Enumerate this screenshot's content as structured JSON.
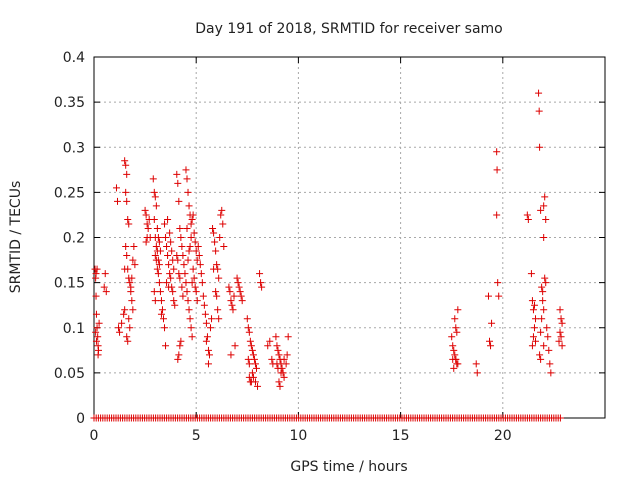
{
  "chart_data": {
    "type": "scatter",
    "title": "Day 191 of 2018, SRMTID for receiver samo",
    "xlabel": "GPS time / hours",
    "ylabel": "SRMTID / TECUs",
    "xlim": [
      0,
      25
    ],
    "ylim": [
      0,
      0.4
    ],
    "x_ticks": [
      0,
      5,
      10,
      15,
      20
    ],
    "y_ticks": [
      0,
      0.05,
      0.1,
      0.15,
      0.2,
      0.25,
      0.3,
      0.35,
      0.4
    ],
    "x_tick_labels": [
      "0",
      "5",
      "10",
      "15",
      "20"
    ],
    "y_tick_labels": [
      "0",
      "0.05",
      "0.1",
      "0.15",
      "0.2",
      "0.25",
      "0.3",
      "0.35",
      "0.4"
    ],
    "grid": true,
    "marker": "+",
    "colors": {
      "series": "#dd0000",
      "grid": "#a8a8a8",
      "axes": "#000000"
    },
    "series": [
      {
        "name": "SRMTID",
        "points": [
          [
            0.05,
            0.165
          ],
          [
            0.08,
            0.155
          ],
          [
            0.1,
            0.135
          ],
          [
            0.12,
            0.115
          ],
          [
            0.15,
            0.1
          ],
          [
            0.18,
            0.09
          ],
          [
            0.2,
            0.08
          ],
          [
            0.22,
            0.075
          ],
          [
            0.25,
            0.105
          ],
          [
            0.1,
            0.16
          ],
          [
            0.15,
            0.165
          ],
          [
            0.2,
            0.07
          ],
          [
            0.08,
            0.095
          ],
          [
            0.12,
            0.085
          ],
          [
            0.5,
            0.145
          ],
          [
            0.55,
            0.16
          ],
          [
            0.6,
            0.14
          ],
          [
            1.1,
            0.255
          ],
          [
            1.15,
            0.24
          ],
          [
            1.2,
            0.1
          ],
          [
            1.25,
            0.095
          ],
          [
            1.35,
            0.105
          ],
          [
            1.5,
            0.285
          ],
          [
            1.55,
            0.28
          ],
          [
            1.6,
            0.27
          ],
          [
            1.55,
            0.25
          ],
          [
            1.6,
            0.24
          ],
          [
            1.65,
            0.22
          ],
          [
            1.7,
            0.215
          ],
          [
            1.55,
            0.19
          ],
          [
            1.6,
            0.18
          ],
          [
            1.65,
            0.165
          ],
          [
            1.7,
            0.155
          ],
          [
            1.75,
            0.15
          ],
          [
            1.8,
            0.14
          ],
          [
            1.85,
            0.13
          ],
          [
            1.9,
            0.12
          ],
          [
            1.7,
            0.11
          ],
          [
            1.75,
            0.1
          ],
          [
            1.6,
            0.09
          ],
          [
            1.8,
            0.145
          ],
          [
            1.85,
            0.155
          ],
          [
            1.9,
            0.175
          ],
          [
            1.95,
            0.19
          ],
          [
            2.0,
            0.17
          ],
          [
            1.5,
            0.165
          ],
          [
            1.5,
            0.12
          ],
          [
            1.45,
            0.115
          ],
          [
            1.65,
            0.085
          ],
          [
            2.5,
            0.23
          ],
          [
            2.55,
            0.225
          ],
          [
            2.6,
            0.215
          ],
          [
            2.65,
            0.21
          ],
          [
            2.7,
            0.22
          ],
          [
            2.75,
            0.2
          ],
          [
            2.6,
            0.2
          ],
          [
            2.55,
            0.195
          ],
          [
            2.9,
            0.265
          ],
          [
            2.95,
            0.25
          ],
          [
            3.0,
            0.245
          ],
          [
            3.05,
            0.235
          ],
          [
            2.95,
            0.22
          ],
          [
            3.0,
            0.2
          ],
          [
            3.05,
            0.19
          ],
          [
            3.1,
            0.185
          ],
          [
            3.15,
            0.175
          ],
          [
            3.2,
            0.17
          ],
          [
            3.1,
            0.165
          ],
          [
            3.15,
            0.16
          ],
          [
            3.2,
            0.15
          ],
          [
            3.25,
            0.14
          ],
          [
            3.3,
            0.13
          ],
          [
            3.35,
            0.12
          ],
          [
            3.4,
            0.11
          ],
          [
            3.45,
            0.1
          ],
          [
            3.3,
            0.115
          ],
          [
            3.0,
            0.18
          ],
          [
            3.05,
            0.175
          ],
          [
            3.1,
            0.21
          ],
          [
            3.15,
            0.2
          ],
          [
            3.2,
            0.195
          ],
          [
            3.25,
            0.185
          ],
          [
            2.95,
            0.14
          ],
          [
            3.0,
            0.13
          ],
          [
            3.45,
            0.215
          ],
          [
            3.5,
            0.2
          ],
          [
            3.55,
            0.19
          ],
          [
            3.6,
            0.18
          ],
          [
            3.65,
            0.17
          ],
          [
            3.7,
            0.16
          ],
          [
            3.75,
            0.155
          ],
          [
            3.8,
            0.145
          ],
          [
            3.85,
            0.14
          ],
          [
            3.9,
            0.13
          ],
          [
            3.95,
            0.125
          ],
          [
            3.5,
            0.08
          ],
          [
            3.6,
            0.22
          ],
          [
            3.7,
            0.205
          ],
          [
            3.75,
            0.195
          ],
          [
            3.8,
            0.185
          ],
          [
            3.85,
            0.175
          ],
          [
            3.9,
            0.165
          ],
          [
            3.55,
            0.15
          ],
          [
            3.65,
            0.145
          ],
          [
            4.05,
            0.27
          ],
          [
            4.1,
            0.26
          ],
          [
            4.15,
            0.24
          ],
          [
            4.2,
            0.21
          ],
          [
            4.25,
            0.2
          ],
          [
            4.3,
            0.19
          ],
          [
            4.35,
            0.18
          ],
          [
            4.4,
            0.17
          ],
          [
            4.45,
            0.16
          ],
          [
            4.5,
            0.15
          ],
          [
            4.55,
            0.14
          ],
          [
            4.6,
            0.13
          ],
          [
            4.65,
            0.12
          ],
          [
            4.7,
            0.11
          ],
          [
            4.75,
            0.1
          ],
          [
            4.8,
            0.09
          ],
          [
            4.1,
            0.065
          ],
          [
            4.15,
            0.07
          ],
          [
            4.2,
            0.08
          ],
          [
            4.25,
            0.085
          ],
          [
            4.05,
            0.18
          ],
          [
            4.1,
            0.175
          ],
          [
            4.15,
            0.16
          ],
          [
            4.2,
            0.155
          ],
          [
            4.3,
            0.145
          ],
          [
            4.35,
            0.135
          ],
          [
            4.5,
            0.275
          ],
          [
            4.55,
            0.265
          ],
          [
            4.6,
            0.25
          ],
          [
            4.65,
            0.235
          ],
          [
            4.7,
            0.225
          ],
          [
            4.75,
            0.215
          ],
          [
            4.8,
            0.22
          ],
          [
            4.85,
            0.225
          ],
          [
            4.9,
            0.205
          ],
          [
            4.95,
            0.195
          ],
          [
            5.0,
            0.185
          ],
          [
            5.05,
            0.175
          ],
          [
            4.85,
            0.165
          ],
          [
            4.9,
            0.155
          ],
          [
            4.95,
            0.145
          ],
          [
            5.0,
            0.14
          ],
          [
            5.05,
            0.13
          ],
          [
            4.6,
            0.175
          ],
          [
            4.65,
            0.185
          ],
          [
            4.7,
            0.19
          ],
          [
            4.75,
            0.2
          ],
          [
            4.8,
            0.15
          ],
          [
            4.55,
            0.21
          ],
          [
            5.1,
            0.19
          ],
          [
            5.15,
            0.18
          ],
          [
            5.2,
            0.17
          ],
          [
            5.25,
            0.16
          ],
          [
            5.3,
            0.15
          ],
          [
            5.35,
            0.135
          ],
          [
            5.4,
            0.125
          ],
          [
            5.45,
            0.115
          ],
          [
            5.5,
            0.105
          ],
          [
            5.55,
            0.09
          ],
          [
            5.6,
            0.075
          ],
          [
            5.65,
            0.07
          ],
          [
            5.7,
            0.1
          ],
          [
            5.75,
            0.11
          ],
          [
            5.5,
            0.085
          ],
          [
            5.6,
            0.06
          ],
          [
            5.8,
            0.21
          ],
          [
            5.85,
            0.205
          ],
          [
            5.9,
            0.195
          ],
          [
            5.95,
            0.185
          ],
          [
            6.0,
            0.17
          ],
          [
            6.05,
            0.165
          ],
          [
            6.1,
            0.155
          ],
          [
            6.15,
            0.2
          ],
          [
            6.2,
            0.225
          ],
          [
            6.25,
            0.23
          ],
          [
            6.3,
            0.215
          ],
          [
            6.35,
            0.19
          ],
          [
            5.95,
            0.14
          ],
          [
            6.0,
            0.135
          ],
          [
            6.05,
            0.12
          ],
          [
            6.1,
            0.11
          ],
          [
            5.85,
            0.165
          ],
          [
            6.6,
            0.145
          ],
          [
            6.65,
            0.14
          ],
          [
            6.7,
            0.13
          ],
          [
            6.75,
            0.125
          ],
          [
            6.8,
            0.12
          ],
          [
            6.85,
            0.135
          ],
          [
            6.9,
            0.08
          ],
          [
            6.7,
            0.07
          ],
          [
            7.0,
            0.155
          ],
          [
            7.05,
            0.15
          ],
          [
            7.1,
            0.145
          ],
          [
            7.15,
            0.14
          ],
          [
            7.2,
            0.135
          ],
          [
            7.25,
            0.13
          ],
          [
            7.5,
            0.11
          ],
          [
            7.55,
            0.1
          ],
          [
            7.6,
            0.095
          ],
          [
            7.65,
            0.085
          ],
          [
            7.7,
            0.08
          ],
          [
            7.75,
            0.075
          ],
          [
            7.8,
            0.07
          ],
          [
            7.85,
            0.065
          ],
          [
            7.9,
            0.06
          ],
          [
            7.95,
            0.055
          ],
          [
            7.6,
            0.045
          ],
          [
            7.65,
            0.04
          ],
          [
            7.7,
            0.04
          ],
          [
            7.8,
            0.045
          ],
          [
            7.9,
            0.04
          ],
          [
            8.0,
            0.035
          ],
          [
            7.55,
            0.065
          ],
          [
            7.6,
            0.06
          ],
          [
            7.75,
            0.05
          ],
          [
            8.1,
            0.16
          ],
          [
            8.15,
            0.15
          ],
          [
            8.2,
            0.145
          ],
          [
            8.5,
            0.08
          ],
          [
            8.6,
            0.085
          ],
          [
            8.7,
            0.065
          ],
          [
            8.75,
            0.06
          ],
          [
            8.9,
            0.09
          ],
          [
            8.95,
            0.08
          ],
          [
            9.0,
            0.075
          ],
          [
            9.05,
            0.07
          ],
          [
            9.1,
            0.065
          ],
          [
            9.15,
            0.06
          ],
          [
            9.2,
            0.055
          ],
          [
            9.25,
            0.05
          ],
          [
            9.3,
            0.045
          ],
          [
            9.05,
            0.04
          ],
          [
            9.1,
            0.035
          ],
          [
            9.15,
            0.05
          ],
          [
            9.3,
            0.065
          ],
          [
            9.4,
            0.06
          ],
          [
            9.5,
            0.09
          ],
          [
            9.45,
            0.07
          ],
          [
            9.0,
            0.055
          ],
          [
            8.95,
            0.06
          ],
          [
            17.5,
            0.09
          ],
          [
            17.55,
            0.08
          ],
          [
            17.6,
            0.075
          ],
          [
            17.65,
            0.07
          ],
          [
            17.7,
            0.065
          ],
          [
            17.75,
            0.06
          ],
          [
            17.6,
            0.055
          ],
          [
            17.7,
            0.065
          ],
          [
            17.8,
            0.06
          ],
          [
            17.65,
            0.11
          ],
          [
            17.7,
            0.1
          ],
          [
            17.75,
            0.095
          ],
          [
            17.8,
            0.12
          ],
          [
            17.55,
            0.065
          ],
          [
            18.7,
            0.06
          ],
          [
            18.75,
            0.05
          ],
          [
            19.3,
            0.135
          ],
          [
            19.35,
            0.085
          ],
          [
            19.4,
            0.08
          ],
          [
            19.45,
            0.105
          ],
          [
            19.7,
            0.295
          ],
          [
            19.72,
            0.275
          ],
          [
            19.7,
            0.225
          ],
          [
            19.75,
            0.15
          ],
          [
            19.8,
            0.135
          ],
          [
            21.2,
            0.225
          ],
          [
            21.25,
            0.22
          ],
          [
            21.4,
            0.16
          ],
          [
            21.45,
            0.13
          ],
          [
            21.5,
            0.12
          ],
          [
            21.55,
            0.1
          ],
          [
            21.6,
            0.11
          ],
          [
            21.5,
            0.09
          ],
          [
            21.45,
            0.08
          ],
          [
            21.6,
            0.085
          ],
          [
            21.55,
            0.125
          ],
          [
            21.75,
            0.36
          ],
          [
            21.78,
            0.34
          ],
          [
            21.8,
            0.3
          ],
          [
            21.85,
            0.23
          ],
          [
            21.9,
            0.145
          ],
          [
            21.95,
            0.14
          ],
          [
            22.0,
            0.2
          ],
          [
            22.05,
            0.245
          ],
          [
            22.0,
            0.235
          ],
          [
            22.1,
            0.22
          ],
          [
            22.05,
            0.155
          ],
          [
            22.1,
            0.15
          ],
          [
            21.95,
            0.13
          ],
          [
            22.0,
            0.12
          ],
          [
            21.9,
            0.11
          ],
          [
            21.85,
            0.095
          ],
          [
            21.8,
            0.07
          ],
          [
            21.85,
            0.065
          ],
          [
            22.15,
            0.1
          ],
          [
            22.2,
            0.09
          ],
          [
            22.25,
            0.075
          ],
          [
            22.3,
            0.06
          ],
          [
            22.35,
            0.05
          ],
          [
            22.0,
            0.08
          ],
          [
            22.8,
            0.12
          ],
          [
            22.85,
            0.11
          ],
          [
            22.9,
            0.105
          ],
          [
            22.8,
            0.095
          ],
          [
            22.85,
            0.09
          ],
          [
            22.75,
            0.085
          ],
          [
            22.9,
            0.08
          ]
        ],
        "zero_baseline_x_range": [
          0,
          22.9
        ]
      }
    ]
  }
}
